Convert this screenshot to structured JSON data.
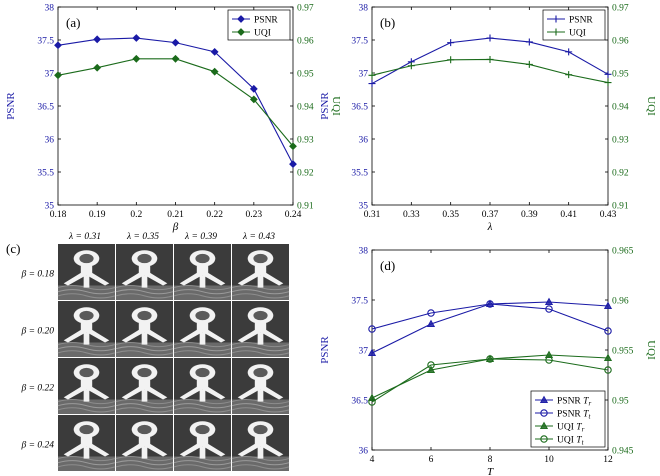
{
  "chart_data": [
    {
      "panel": "(a)",
      "type": "line",
      "x": [
        0.18,
        0.19,
        0.2,
        0.21,
        0.22,
        0.23,
        0.24
      ],
      "xlabel": "β",
      "xticks": [
        "0.18",
        "0.19",
        "0.2",
        "0.21",
        "0.22",
        "0.23",
        "0.24"
      ],
      "xlim": [
        0.18,
        0.24
      ],
      "ylabel_left": "PSNR",
      "ylim_left": [
        35,
        38
      ],
      "yticks_left": [
        "35",
        "35.5",
        "36",
        "36.5",
        "37",
        "37.5",
        "38"
      ],
      "ylabel_right": "UQI",
      "ylim_right": [
        0.91,
        0.97
      ],
      "yticks_right": [
        "0.91",
        "0.92",
        "0.93",
        "0.94",
        "0.95",
        "0.96",
        "0.97"
      ],
      "series": [
        {
          "name": "PSNR",
          "axis": "left",
          "color": "#1a1aa6",
          "marker": "diamond",
          "values": [
            37.42,
            37.51,
            37.53,
            37.46,
            37.32,
            36.76,
            35.62
          ]
        },
        {
          "name": "UQI",
          "axis": "right",
          "color": "#1b6b1b",
          "marker": "diamond",
          "values": [
            0.9493,
            0.9516,
            0.9543,
            0.9543,
            0.9504,
            0.942,
            0.9278
          ]
        }
      ],
      "legend": [
        "PSNR",
        "UQI"
      ]
    },
    {
      "panel": "(b)",
      "type": "line",
      "x": [
        0.31,
        0.33,
        0.35,
        0.37,
        0.39,
        0.41,
        0.43
      ],
      "xlabel": "λ",
      "xticks": [
        "0.31",
        "0.33",
        "0.35",
        "0.37",
        "0.39",
        "0.41",
        "0.43"
      ],
      "xlim": [
        0.31,
        0.43
      ],
      "ylabel_left": "PSNR",
      "ylim_left": [
        35,
        38
      ],
      "yticks_left": [
        "35",
        "35.5",
        "36",
        "36.5",
        "37",
        "37.5",
        "38"
      ],
      "ylabel_right": "UQI",
      "ylim_right": [
        0.91,
        0.97
      ],
      "yticks_right": [
        "0.91",
        "0.92",
        "0.93",
        "0.94",
        "0.95",
        "0.96",
        "0.97"
      ],
      "series": [
        {
          "name": "PSNR",
          "axis": "left",
          "color": "#1a1aa6",
          "marker": "plus",
          "values": [
            36.84,
            37.17,
            37.46,
            37.53,
            37.47,
            37.32,
            36.98
          ]
        },
        {
          "name": "UQI",
          "axis": "right",
          "color": "#1b6b1b",
          "marker": "plus",
          "values": [
            0.9493,
            0.9522,
            0.954,
            0.9541,
            0.9526,
            0.9495,
            0.9471
          ]
        }
      ],
      "legend": [
        "PSNR",
        "UQI"
      ]
    },
    {
      "panel": "(d)",
      "type": "line",
      "x": [
        4,
        6,
        8,
        10,
        12
      ],
      "xlabel": "T",
      "xticks": [
        "4",
        "6",
        "8",
        "10",
        "12"
      ],
      "xlim": [
        4,
        12
      ],
      "ylabel_left": "PSNR",
      "ylim_left": [
        36,
        38
      ],
      "yticks_left": [
        "36",
        "36.5",
        "37",
        "37.5",
        "38"
      ],
      "ylabel_right": "UQI",
      "ylim_right": [
        0.945,
        0.965
      ],
      "yticks_right": [
        "0.945",
        "0.95",
        "0.955",
        "0.96",
        "0.965"
      ],
      "series": [
        {
          "name": "PSNR T_r",
          "axis": "left",
          "color": "#1a1aa6",
          "marker": "triangle",
          "values": [
            36.97,
            37.26,
            37.46,
            37.48,
            37.44
          ]
        },
        {
          "name": "PSNR T_t",
          "axis": "left",
          "color": "#1a1aa6",
          "marker": "circle",
          "values": [
            37.21,
            37.37,
            37.46,
            37.41,
            37.19
          ]
        },
        {
          "name": "UQI T_r",
          "axis": "right",
          "color": "#1b6b1b",
          "marker": "triangle",
          "values": [
            0.9502,
            0.953,
            0.9541,
            0.9545,
            0.9542
          ]
        },
        {
          "name": "UQI T_t",
          "axis": "right",
          "color": "#1b6b1b",
          "marker": "circle",
          "values": [
            0.9498,
            0.9535,
            0.9541,
            0.954,
            0.953
          ]
        }
      ],
      "legend": [
        {
          "base": "PSNR ",
          "sub": "r"
        },
        {
          "base": "PSNR ",
          "sub": "t"
        },
        {
          "base": "UQI ",
          "sub": "r"
        },
        {
          "base": "UQI ",
          "sub": "t"
        }
      ]
    }
  ],
  "image_grid": {
    "panel": "(c)",
    "columns": [
      "λ = 0.31",
      "λ = 0.35",
      "λ = 0.39",
      "λ = 0.43"
    ],
    "rows": [
      "β = 0.18",
      "β = 0.20",
      "β = 0.22",
      "β = 0.24"
    ]
  }
}
